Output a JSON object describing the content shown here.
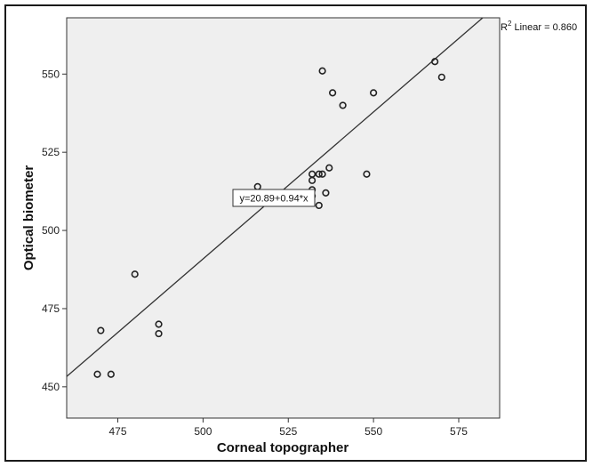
{
  "chart_data": {
    "type": "scatter",
    "title": "",
    "xlabel": "Corneal topographer",
    "ylabel": "Optical biometer",
    "xlim": [
      460,
      587
    ],
    "ylim": [
      440,
      568
    ],
    "x_ticks": [
      475,
      500,
      525,
      550,
      575
    ],
    "y_ticks": [
      450,
      475,
      500,
      525,
      550
    ],
    "grid": false,
    "plot_background": "#efefef",
    "marker_color": "#222222",
    "fit_line": {
      "type": "linear",
      "intercept": 20.89,
      "slope": 0.94,
      "equation_label": "y=20.89+0.94*x",
      "r2_prefix": "R",
      "r2_superscript": "2",
      "r2_suffix": " Linear = 0.860"
    },
    "points": [
      {
        "x": 469,
        "y": 454
      },
      {
        "x": 473,
        "y": 454
      },
      {
        "x": 470,
        "y": 468
      },
      {
        "x": 480,
        "y": 486
      },
      {
        "x": 487,
        "y": 470
      },
      {
        "x": 487,
        "y": 467
      },
      {
        "x": 516,
        "y": 514
      },
      {
        "x": 532,
        "y": 518
      },
      {
        "x": 532,
        "y": 516
      },
      {
        "x": 532,
        "y": 513
      },
      {
        "x": 532,
        "y": 511
      },
      {
        "x": 534,
        "y": 518
      },
      {
        "x": 535,
        "y": 518
      },
      {
        "x": 534,
        "y": 508
      },
      {
        "x": 536,
        "y": 512
      },
      {
        "x": 537,
        "y": 520
      },
      {
        "x": 535,
        "y": 551
      },
      {
        "x": 538,
        "y": 544
      },
      {
        "x": 541,
        "y": 540
      },
      {
        "x": 548,
        "y": 518
      },
      {
        "x": 550,
        "y": 544
      },
      {
        "x": 568,
        "y": 554
      },
      {
        "x": 570,
        "y": 549
      }
    ]
  }
}
